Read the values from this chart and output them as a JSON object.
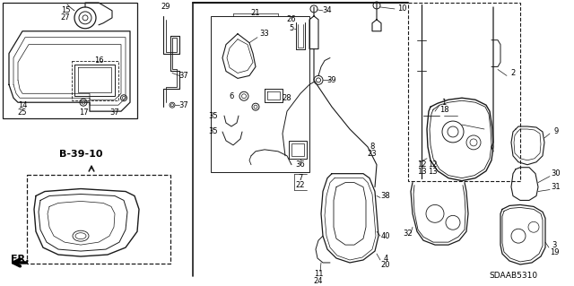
{
  "bg_color": "#ffffff",
  "line_color": "#1a1a1a",
  "text_color": "#000000",
  "diagram_code": "SDAAB5310",
  "ref_label": "B-39-10",
  "fr_label": "FR.",
  "figsize": [
    6.4,
    3.19
  ],
  "dpi": 100
}
